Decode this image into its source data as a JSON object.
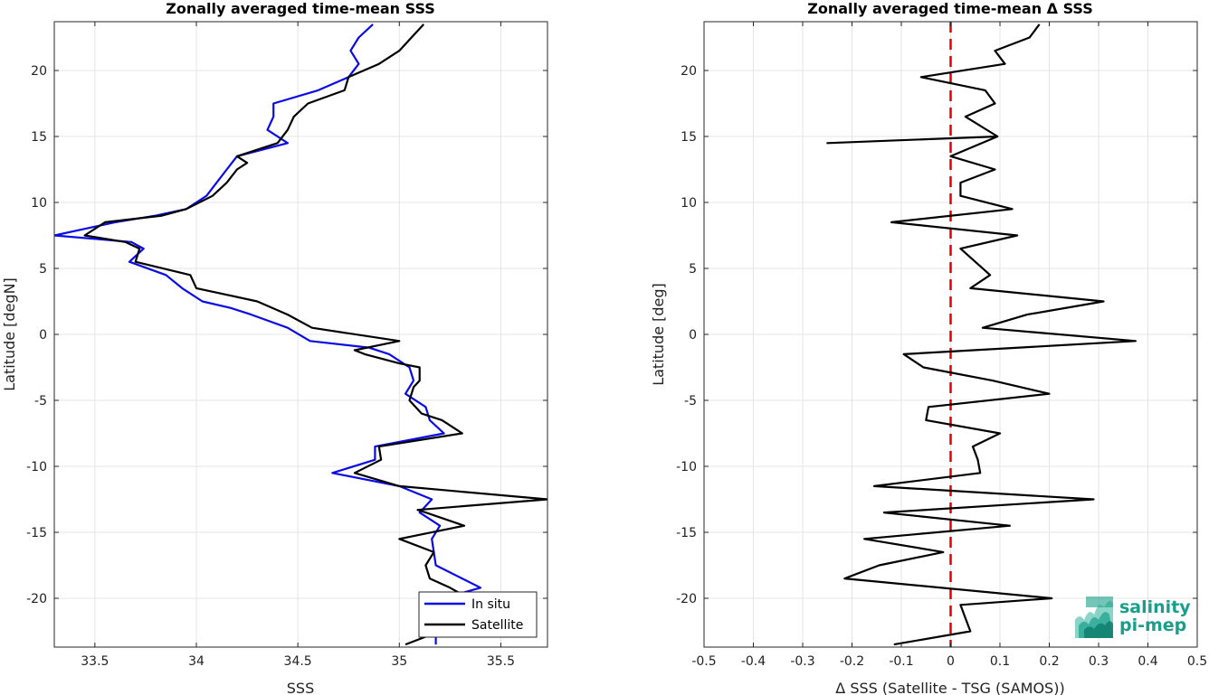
{
  "colors": {
    "in_situ": "#0a0ae6",
    "satellite": "#000000",
    "zero_line": "#e00000",
    "grid": "#e4e4e4",
    "logo": "#1a9e8a"
  },
  "logo": {
    "line1": "salinity",
    "line2": "pi-mep"
  },
  "chart_data": [
    {
      "type": "line",
      "title": "Zonally averaged time-mean SSS",
      "xlabel": "SSS",
      "ylabel": "Latitude [degN]",
      "xlim": [
        33.3,
        35.73
      ],
      "ylim": [
        -23.7,
        23.7
      ],
      "xticks": [
        33.5,
        34,
        34.5,
        35,
        35.5
      ],
      "xtick_labels": [
        "33.5",
        "34",
        "34.5",
        "35",
        "35.5"
      ],
      "yticks": [
        -20,
        -15,
        -10,
        -5,
        0,
        5,
        10,
        15,
        20
      ],
      "ytick_labels": [
        "-20",
        "-15",
        "-10",
        "-5",
        "0",
        "5",
        "10",
        "15",
        "20"
      ],
      "grid": true,
      "legend": "bottom-right",
      "series": [
        {
          "name": "In situ",
          "color_key": "in_situ",
          "points": [
            [
              35.18,
              -23.5
            ],
            [
              35.18,
              -22.5
            ],
            [
              35.25,
              -21.5
            ],
            [
              35.1,
              -20.5
            ],
            [
              35.4,
              -19.2
            ],
            [
              35.18,
              -17.5
            ],
            [
              35.17,
              -16.5
            ],
            [
              35.16,
              -15.5
            ],
            [
              35.2,
              -14.5
            ],
            [
              35.1,
              -13.5
            ],
            [
              35.16,
              -12.5
            ],
            [
              35.0,
              -11.5
            ],
            [
              34.67,
              -10.5
            ],
            [
              34.88,
              -9.5
            ],
            [
              34.88,
              -8.5
            ],
            [
              35.22,
              -7.5
            ],
            [
              35.15,
              -6.5
            ],
            [
              35.13,
              -5.5
            ],
            [
              35.03,
              -4.5
            ],
            [
              35.07,
              -3.5
            ],
            [
              35.05,
              -2.5
            ],
            [
              34.95,
              -1.5
            ],
            [
              34.85,
              -1.0
            ],
            [
              34.56,
              -0.5
            ],
            [
              34.45,
              0.5
            ],
            [
              34.27,
              1.5
            ],
            [
              34.17,
              2.0
            ],
            [
              34.03,
              2.5
            ],
            [
              33.93,
              3.5
            ],
            [
              33.85,
              4.5
            ],
            [
              33.67,
              5.5
            ],
            [
              33.74,
              6.5
            ],
            [
              33.68,
              7.0
            ],
            [
              33.3,
              7.5
            ],
            [
              33.6,
              8.5
            ],
            [
              33.8,
              9.0
            ],
            [
              33.95,
              9.5
            ],
            [
              34.05,
              10.5
            ],
            [
              34.1,
              11.5
            ],
            [
              34.15,
              12.5
            ],
            [
              34.2,
              13.5
            ],
            [
              34.45,
              14.5
            ],
            [
              34.35,
              15.5
            ],
            [
              34.38,
              16.5
            ],
            [
              34.38,
              17.5
            ],
            [
              34.6,
              18.5
            ],
            [
              34.75,
              19.5
            ],
            [
              34.8,
              20.5
            ],
            [
              34.76,
              21.5
            ],
            [
              34.8,
              22.5
            ],
            [
              34.87,
              23.5
            ]
          ]
        },
        {
          "name": "Satellite",
          "color_key": "satellite",
          "points": [
            [
              35.03,
              -23.5
            ],
            [
              35.2,
              -22.5
            ],
            [
              35.25,
              -21.5
            ],
            [
              35.4,
              -20.5
            ],
            [
              35.25,
              -19.2
            ],
            [
              35.15,
              -18.5
            ],
            [
              35.13,
              -17.5
            ],
            [
              35.17,
              -16.5
            ],
            [
              35.0,
              -15.5
            ],
            [
              35.32,
              -14.5
            ],
            [
              35.13,
              -13.5
            ],
            [
              35.09,
              -13.3
            ],
            [
              35.73,
              -12.5
            ],
            [
              35.0,
              -11.5
            ],
            [
              34.78,
              -10.5
            ],
            [
              34.91,
              -9.5
            ],
            [
              34.9,
              -8.5
            ],
            [
              35.31,
              -7.5
            ],
            [
              35.21,
              -6.5
            ],
            [
              35.11,
              -6.0
            ],
            [
              35.05,
              -5.0
            ],
            [
              35.07,
              -4.0
            ],
            [
              35.1,
              -3.5
            ],
            [
              35.1,
              -2.5
            ],
            [
              35.0,
              -2.2
            ],
            [
              34.83,
              -1.5
            ],
            [
              34.78,
              -1.2
            ],
            [
              35.0,
              -0.5
            ],
            [
              34.57,
              0.5
            ],
            [
              34.45,
              1.5
            ],
            [
              34.3,
              2.5
            ],
            [
              34.0,
              3.5
            ],
            [
              33.97,
              4.5
            ],
            [
              33.7,
              5.5
            ],
            [
              33.72,
              6.5
            ],
            [
              33.65,
              7.0
            ],
            [
              33.45,
              7.5
            ],
            [
              33.55,
              8.5
            ],
            [
              33.83,
              9.0
            ],
            [
              33.95,
              9.5
            ],
            [
              34.08,
              10.5
            ],
            [
              34.15,
              11.5
            ],
            [
              34.2,
              12.5
            ],
            [
              34.25,
              13.0
            ],
            [
              34.2,
              13.5
            ],
            [
              34.4,
              14.5
            ],
            [
              34.45,
              15.5
            ],
            [
              34.48,
              16.5
            ],
            [
              34.55,
              17.5
            ],
            [
              34.73,
              18.5
            ],
            [
              34.75,
              19.5
            ],
            [
              34.9,
              20.5
            ],
            [
              35.0,
              21.5
            ],
            [
              35.06,
              22.5
            ],
            [
              35.12,
              23.5
            ]
          ]
        }
      ]
    },
    {
      "type": "line",
      "title": "Zonally averaged time-mean Δ SSS",
      "xlabel": "Δ SSS (Satellite - TSG (SAMOS))",
      "ylabel": "Latitude [deg]",
      "xlim": [
        -0.5,
        0.5
      ],
      "ylim": [
        -23.7,
        23.7
      ],
      "xticks": [
        -0.5,
        -0.4,
        -0.3,
        -0.2,
        -0.1,
        0,
        0.1,
        0.2,
        0.3,
        0.4,
        0.5
      ],
      "xtick_labels": [
        "-0.5",
        "-0.4",
        "-0.3",
        "-0.2",
        "-0.1",
        "0",
        "0.1",
        "0.2",
        "0.3",
        "0.4",
        "0.5"
      ],
      "yticks": [
        -20,
        -15,
        -10,
        -5,
        0,
        5,
        10,
        15,
        20
      ],
      "ytick_labels": [
        "-20",
        "-15",
        "-10",
        "-5",
        "0",
        "5",
        "10",
        "15",
        "20"
      ],
      "grid": true,
      "reference_line_x": 0,
      "series": [
        {
          "color_key": "satellite",
          "points": [
            [
              -0.115,
              -23.5
            ],
            [
              0.04,
              -22.5
            ],
            [
              0.03,
              -21.5
            ],
            [
              0.02,
              -20.5
            ],
            [
              0.205,
              -20.0
            ],
            [
              -0.215,
              -18.5
            ],
            [
              -0.145,
              -17.5
            ],
            [
              -0.015,
              -16.5
            ],
            [
              -0.175,
              -15.5
            ],
            [
              0.12,
              -14.5
            ],
            [
              -0.135,
              -13.5
            ],
            [
              0.29,
              -12.5
            ],
            [
              -0.155,
              -11.5
            ],
            [
              0.06,
              -10.5
            ],
            [
              0.055,
              -9.5
            ],
            [
              0.045,
              -8.5
            ],
            [
              0.1,
              -7.5
            ],
            [
              -0.05,
              -6.5
            ],
            [
              -0.045,
              -5.5
            ],
            [
              0.2,
              -4.5
            ],
            [
              0.085,
              -3.5
            ],
            [
              -0.055,
              -2.5
            ],
            [
              -0.095,
              -1.5
            ],
            [
              0.375,
              -0.5
            ],
            [
              0.065,
              0.5
            ],
            [
              0.155,
              1.5
            ],
            [
              0.31,
              2.5
            ],
            [
              0.04,
              3.5
            ],
            [
              0.08,
              4.5
            ],
            [
              0.02,
              6.5
            ],
            [
              0.135,
              7.5
            ],
            [
              -0.12,
              8.5
            ],
            [
              0.125,
              9.5
            ],
            [
              0.02,
              10.5
            ],
            [
              0.02,
              11.5
            ],
            [
              0.09,
              12.5
            ],
            [
              0.0,
              13.5
            ],
            [
              0.095,
              15.0
            ],
            [
              -0.25,
              14.5
            ],
            [
              0.095,
              15.0
            ],
            [
              0.03,
              16.5
            ],
            [
              0.09,
              17.5
            ],
            [
              0.07,
              18.5
            ],
            [
              -0.06,
              19.5
            ],
            [
              0.11,
              20.5
            ],
            [
              0.09,
              21.5
            ],
            [
              0.16,
              22.5
            ],
            [
              0.18,
              23.5
            ]
          ]
        }
      ]
    }
  ]
}
